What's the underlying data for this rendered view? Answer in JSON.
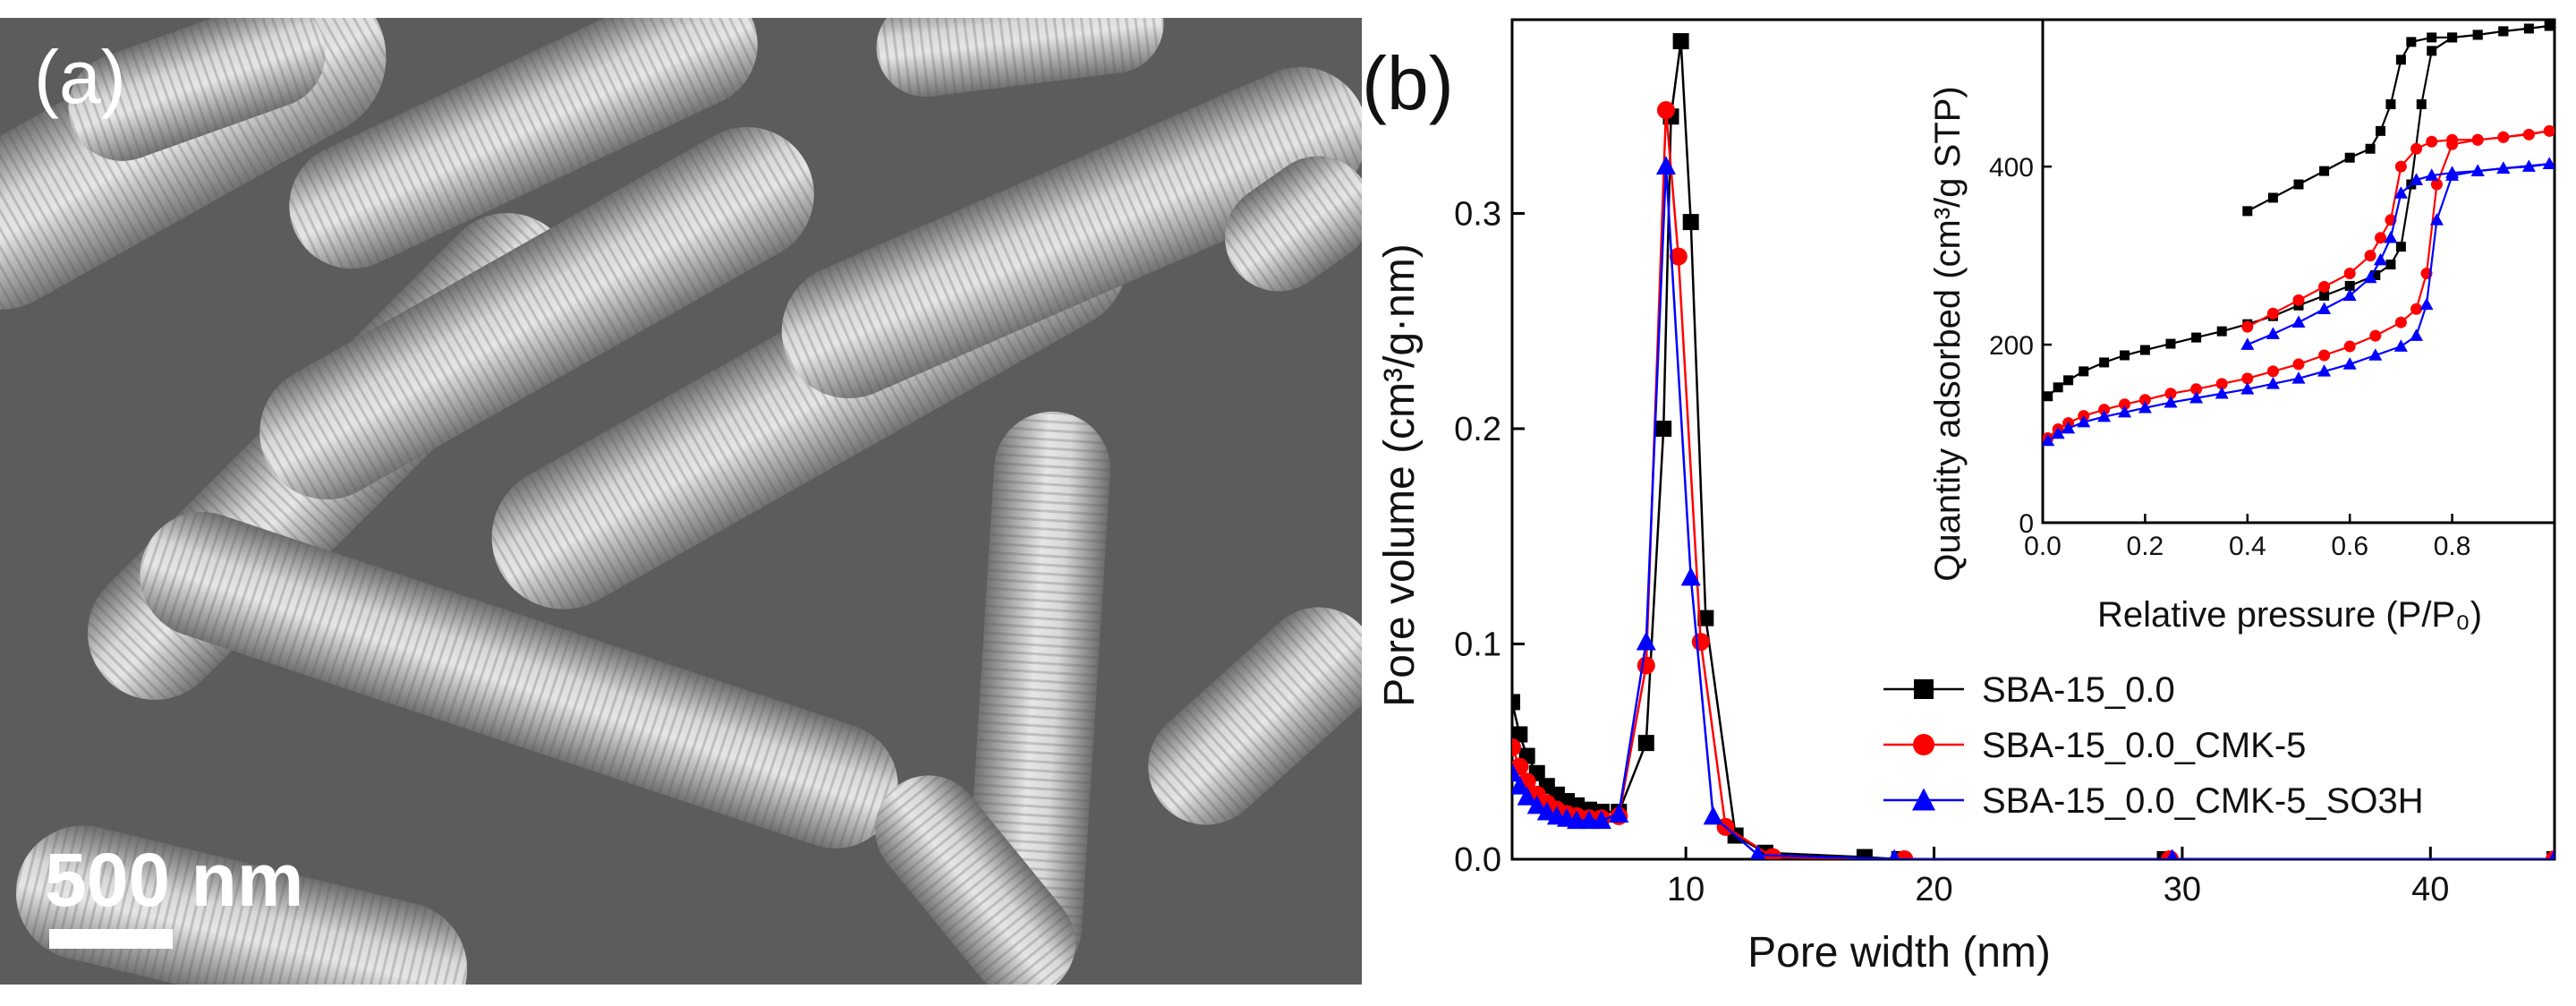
{
  "panel_a": {
    "label": "(a)",
    "scale_bar_label": "500 nm"
  },
  "panel_b": {
    "label": "(b)"
  },
  "chart_data": [
    {
      "type": "line",
      "xlabel": "Pore width (nm)",
      "ylabel": "Pore volume (cm³/g·nm)",
      "xlim": [
        3,
        45
      ],
      "ylim": [
        0,
        0.39
      ],
      "xticks": [
        "10",
        "20",
        "30",
        "40"
      ],
      "yticks": [
        "0.0",
        "0.1",
        "0.2",
        "0.3"
      ],
      "legend_position": "bottom-right",
      "series": [
        {
          "name": "SBA-15_0.0",
          "color": "#000000",
          "marker": "square",
          "points": [
            [
              3.0,
              0.073
            ],
            [
              3.3,
              0.058
            ],
            [
              3.6,
              0.048
            ],
            [
              4.0,
              0.04
            ],
            [
              4.4,
              0.034
            ],
            [
              4.8,
              0.03
            ],
            [
              5.2,
              0.027
            ],
            [
              5.6,
              0.025
            ],
            [
              6.1,
              0.023
            ],
            [
              6.6,
              0.022
            ],
            [
              7.3,
              0.022
            ],
            [
              8.4,
              0.054
            ],
            [
              9.1,
              0.2
            ],
            [
              9.4,
              0.345
            ],
            [
              9.8,
              0.38
            ],
            [
              10.2,
              0.296
            ],
            [
              10.8,
              0.112
            ],
            [
              12.0,
              0.011
            ],
            [
              13.2,
              0.003
            ],
            [
              17.2,
              0.001
            ],
            [
              18.6,
              0.0
            ],
            [
              29.3,
              0.0
            ],
            [
              45.0,
              0.0
            ]
          ]
        },
        {
          "name": "SBA-15_0.0_CMK-5",
          "color": "#ff0000",
          "marker": "circle",
          "points": [
            [
              3.0,
              0.052
            ],
            [
              3.3,
              0.043
            ],
            [
              3.6,
              0.036
            ],
            [
              4.0,
              0.03
            ],
            [
              4.4,
              0.026
            ],
            [
              4.8,
              0.023
            ],
            [
              5.2,
              0.021
            ],
            [
              5.6,
              0.02
            ],
            [
              6.1,
              0.019
            ],
            [
              6.6,
              0.019
            ],
            [
              7.3,
              0.02
            ],
            [
              8.4,
              0.09
            ],
            [
              9.2,
              0.348
            ],
            [
              9.7,
              0.28
            ],
            [
              10.6,
              0.101
            ],
            [
              11.6,
              0.015
            ],
            [
              13.5,
              0.001
            ],
            [
              18.8,
              0.0
            ],
            [
              29.5,
              0.0
            ],
            [
              45.0,
              0.0
            ]
          ]
        },
        {
          "name": "SBA-15_0.0_CMK-5_SO3H",
          "color": "#0000ff",
          "marker": "triangle",
          "points": [
            [
              3.0,
              0.04
            ],
            [
              3.3,
              0.034
            ],
            [
              3.6,
              0.029
            ],
            [
              4.0,
              0.025
            ],
            [
              4.4,
              0.022
            ],
            [
              4.8,
              0.02
            ],
            [
              5.2,
              0.019
            ],
            [
              5.6,
              0.018
            ],
            [
              6.1,
              0.018
            ],
            [
              6.6,
              0.018
            ],
            [
              7.3,
              0.021
            ],
            [
              8.4,
              0.101
            ],
            [
              9.2,
              0.322
            ],
            [
              10.2,
              0.131
            ],
            [
              11.1,
              0.02
            ],
            [
              12.9,
              0.002
            ],
            [
              18.4,
              0.0
            ],
            [
              29.6,
              0.0
            ],
            [
              45.0,
              0.0
            ]
          ]
        }
      ]
    },
    {
      "type": "line",
      "inset": true,
      "xlabel": "Relative pressure (P/P₀)",
      "ylabel": "Quantity adsorbed (cm³/g STP)",
      "xlim": [
        0,
        1.0
      ],
      "ylim": [
        0,
        565
      ],
      "xticks": [
        "0.0",
        "0.2",
        "0.4",
        "0.6",
        "0.8"
      ],
      "yticks": [
        "0",
        "200",
        "400"
      ],
      "series": [
        {
          "name": "SBA-15_0.0",
          "color": "#000000",
          "marker": "square",
          "adsorption": [
            [
              0.01,
              142
            ],
            [
              0.03,
              152
            ],
            [
              0.05,
              160
            ],
            [
              0.08,
              170
            ],
            [
              0.12,
              180
            ],
            [
              0.16,
              188
            ],
            [
              0.2,
              194
            ],
            [
              0.25,
              201
            ],
            [
              0.3,
              208
            ],
            [
              0.35,
              215
            ],
            [
              0.4,
              223
            ],
            [
              0.45,
              232
            ],
            [
              0.5,
              244
            ],
            [
              0.55,
              255
            ],
            [
              0.6,
              266
            ],
            [
              0.65,
              278
            ],
            [
              0.68,
              290
            ],
            [
              0.7,
              310
            ],
            [
              0.72,
              380
            ],
            [
              0.74,
              470
            ],
            [
              0.76,
              530
            ],
            [
              0.8,
              545
            ],
            [
              0.85,
              548
            ],
            [
              0.9,
              552
            ],
            [
              0.95,
              555
            ],
            [
              0.99,
              558
            ]
          ],
          "desorption": [
            [
              0.99,
              558
            ],
            [
              0.9,
              552
            ],
            [
              0.85,
              548
            ],
            [
              0.8,
              545
            ],
            [
              0.76,
              545
            ],
            [
              0.72,
              540
            ],
            [
              0.7,
              520
            ],
            [
              0.68,
              470
            ],
            [
              0.66,
              440
            ],
            [
              0.64,
              420
            ],
            [
              0.6,
              410
            ],
            [
              0.55,
              395
            ],
            [
              0.5,
              380
            ],
            [
              0.45,
              365
            ],
            [
              0.4,
              350
            ]
          ]
        },
        {
          "name": "SBA-15_0.0_CMK-5",
          "color": "#ff0000",
          "marker": "circle",
          "adsorption": [
            [
              0.01,
              95
            ],
            [
              0.03,
              105
            ],
            [
              0.05,
              112
            ],
            [
              0.08,
              120
            ],
            [
              0.12,
              127
            ],
            [
              0.16,
              133
            ],
            [
              0.2,
              138
            ],
            [
              0.25,
              145
            ],
            [
              0.3,
              150
            ],
            [
              0.35,
              156
            ],
            [
              0.4,
              162
            ],
            [
              0.45,
              170
            ],
            [
              0.5,
              178
            ],
            [
              0.55,
              188
            ],
            [
              0.6,
              198
            ],
            [
              0.65,
              210
            ],
            [
              0.7,
              225
            ],
            [
              0.73,
              240
            ],
            [
              0.75,
              280
            ],
            [
              0.77,
              380
            ],
            [
              0.8,
              425
            ],
            [
              0.85,
              430
            ],
            [
              0.9,
              433
            ],
            [
              0.95,
              436
            ],
            [
              0.99,
              440
            ]
          ],
          "desorption": [
            [
              0.99,
              440
            ],
            [
              0.9,
              433
            ],
            [
              0.85,
              430
            ],
            [
              0.8,
              430
            ],
            [
              0.76,
              428
            ],
            [
              0.73,
              420
            ],
            [
              0.7,
              400
            ],
            [
              0.68,
              340
            ],
            [
              0.66,
              320
            ],
            [
              0.64,
              300
            ],
            [
              0.6,
              280
            ],
            [
              0.55,
              265
            ],
            [
              0.5,
              250
            ],
            [
              0.45,
              235
            ],
            [
              0.4,
              220
            ]
          ]
        },
        {
          "name": "SBA-15_0.0_CMK-5_SO3H",
          "color": "#0000ff",
          "marker": "triangle",
          "adsorption": [
            [
              0.01,
              92
            ],
            [
              0.03,
              100
            ],
            [
              0.05,
              106
            ],
            [
              0.08,
              113
            ],
            [
              0.12,
              119
            ],
            [
              0.16,
              124
            ],
            [
              0.2,
              129
            ],
            [
              0.25,
              135
            ],
            [
              0.3,
              140
            ],
            [
              0.35,
              145
            ],
            [
              0.4,
              150
            ],
            [
              0.45,
              156
            ],
            [
              0.5,
              162
            ],
            [
              0.55,
              170
            ],
            [
              0.6,
              178
            ],
            [
              0.65,
              188
            ],
            [
              0.7,
              198
            ],
            [
              0.73,
              210
            ],
            [
              0.75,
              245
            ],
            [
              0.77,
              340
            ],
            [
              0.8,
              390
            ],
            [
              0.85,
              395
            ],
            [
              0.9,
              398
            ],
            [
              0.95,
              400
            ],
            [
              0.99,
              403
            ]
          ],
          "desorption": [
            [
              0.99,
              403
            ],
            [
              0.9,
              398
            ],
            [
              0.85,
              395
            ],
            [
              0.8,
              393
            ],
            [
              0.76,
              390
            ],
            [
              0.73,
              385
            ],
            [
              0.7,
              370
            ],
            [
              0.68,
              320
            ],
            [
              0.66,
              295
            ],
            [
              0.64,
              275
            ],
            [
              0.6,
              255
            ],
            [
              0.55,
              240
            ],
            [
              0.5,
              225
            ],
            [
              0.45,
              212
            ],
            [
              0.4,
              200
            ]
          ]
        }
      ]
    }
  ]
}
